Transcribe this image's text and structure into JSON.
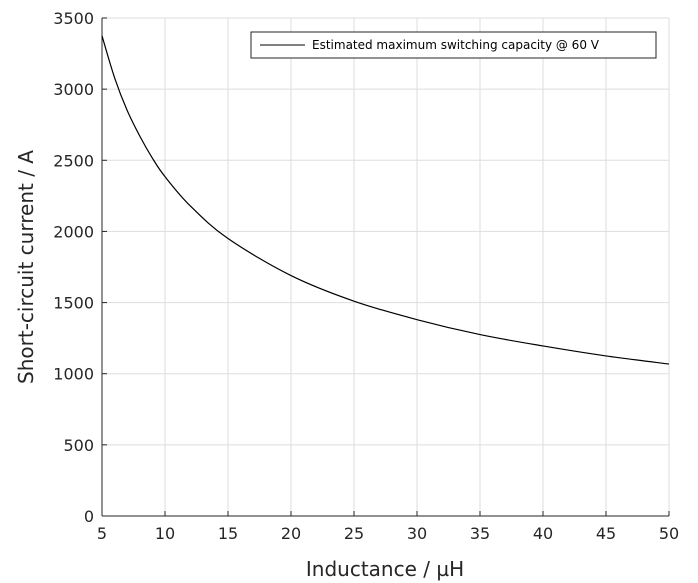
{
  "chart_data": {
    "type": "line",
    "title": "",
    "xlabel": "Inductance / µH",
    "ylabel": "Short-circuit current / A",
    "xlim": [
      5,
      50
    ],
    "ylim": [
      0,
      3500
    ],
    "x_ticks": [
      "5",
      "10",
      "15",
      "20",
      "25",
      "30",
      "35",
      "40",
      "45",
      "50"
    ],
    "y_ticks": [
      "0",
      "500",
      "1000",
      "1500",
      "2000",
      "2500",
      "3000",
      "3500"
    ],
    "grid": true,
    "legend_position": "top-right",
    "series": [
      {
        "name": "Estimated maximum switching capacity @ 60 V",
        "color": "#000000",
        "x": [
          5,
          6,
          7,
          8,
          9,
          10,
          12,
          15,
          20,
          25,
          30,
          35,
          40,
          45,
          50
        ],
        "y": [
          3375,
          3080,
          2850,
          2670,
          2515,
          2385,
          2180,
          1950,
          1690,
          1510,
          1380,
          1275,
          1195,
          1125,
          1068
        ]
      }
    ]
  }
}
